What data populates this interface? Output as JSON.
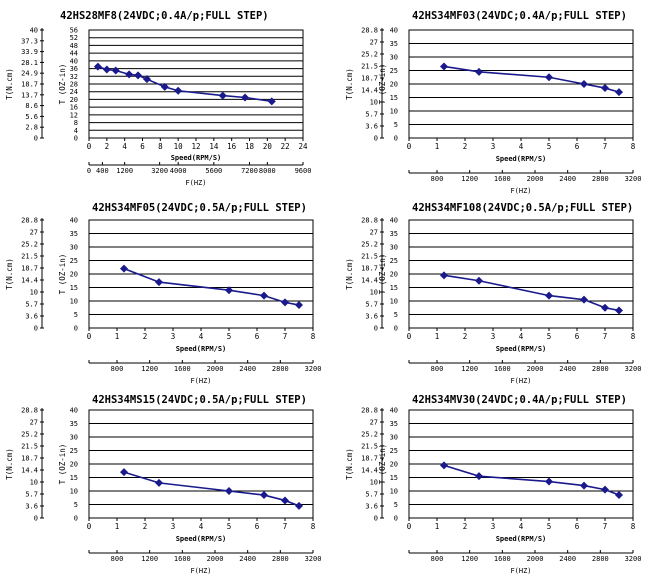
{
  "page": {
    "label_nm": "T(N.cm)",
    "label_ozin": "T (OZ-in)",
    "label_speed": "Speed(RPM/S)",
    "label_freq": "F(HZ)"
  },
  "colors": {
    "series": "#1a1a8c",
    "grid": "#000000",
    "text": "#000000"
  },
  "chart_data": [
    {
      "type": "line",
      "title": "42HS28MF8(24VDC;0.4A/p;FULL STEP)",
      "ylabel_left": "T(N.cm)",
      "ylabel_right": "T (OZ-in)",
      "xlabel": "Speed(RPM/S)",
      "x2label": "F(HZ)",
      "ylim": [
        0,
        56
      ],
      "xlim": [
        0,
        24
      ],
      "yticks_ozin": [
        "0",
        "4",
        "8",
        "12",
        "16",
        "20",
        "24",
        "28",
        "32",
        "36",
        "40",
        "44",
        "48",
        "52",
        "56"
      ],
      "yticks_ncm": [
        "0",
        "2.8",
        "5.6",
        "8.6",
        "13.7",
        "18.7",
        "24.9",
        "28.1",
        "33.9",
        "37.3",
        "40"
      ],
      "xticks": [
        "0",
        "2",
        "4",
        "6",
        "8",
        "10",
        "12",
        "14",
        "16",
        "18",
        "20",
        "22",
        "24"
      ],
      "freq_ticks": [
        "0",
        "400",
        "1200",
        "3200",
        "4000",
        "5600",
        "7200",
        "8000",
        "9600"
      ],
      "x": [
        1,
        2,
        3,
        4.5,
        5.5,
        6.5,
        8.5,
        10,
        15,
        17.5,
        20.5
      ],
      "y": [
        37,
        35.5,
        35,
        33,
        32.5,
        30.5,
        26.5,
        24.5,
        22,
        21,
        19
      ]
    },
    {
      "type": "line",
      "title": "42HS34MF03(24VDC;0.4A/p;FULL STEP)",
      "ylabel_left": "T(N.cm)",
      "ylabel_right": "T (OZ-in)",
      "xlabel": "Speed(RPM/S)",
      "x2label": "F(HZ)",
      "ylim": [
        0,
        40
      ],
      "xlim": [
        0,
        8
      ],
      "yticks_ozin": [
        "0",
        "5",
        "10",
        "15",
        "20",
        "25",
        "30",
        "35",
        "40"
      ],
      "yticks_ncm": [
        "0",
        "3.6",
        "5.7",
        "10",
        "14.4",
        "18.7",
        "21.5",
        "25.2",
        "27",
        "28.8"
      ],
      "xticks": [
        "0",
        "1",
        "2",
        "3",
        "4",
        "5",
        "6",
        "7",
        "8"
      ],
      "freq_ticks": [
        "800",
        "1200",
        "1600",
        "2000",
        "2400",
        "2800",
        "3200"
      ],
      "x": [
        1.25,
        2.5,
        5,
        6.25,
        7,
        7.5
      ],
      "y": [
        26.5,
        24.5,
        22.5,
        20,
        18.5,
        17
      ]
    },
    {
      "type": "line",
      "title": "42HS34MF05(24VDC;0.5A/p;FULL STEP)",
      "ylabel_left": "T(N.cm)",
      "ylabel_right": "T (OZ-in)",
      "xlabel": "Speed(RPM/S)",
      "x2label": "F(HZ)",
      "ylim": [
        0,
        40
      ],
      "xlim": [
        0,
        8
      ],
      "yticks_ozin": [
        "0",
        "5",
        "10",
        "15",
        "20",
        "25",
        "30",
        "35",
        "40"
      ],
      "yticks_ncm": [
        "0",
        "3.6",
        "5.7",
        "10",
        "14.4",
        "18.7",
        "21.5",
        "25.2",
        "27",
        "28.8"
      ],
      "xticks": [
        "0",
        "1",
        "2",
        "3",
        "4",
        "5",
        "6",
        "7",
        "8"
      ],
      "freq_ticks": [
        "800",
        "1200",
        "1600",
        "2000",
        "2400",
        "2800",
        "3200"
      ],
      "x": [
        1.25,
        2.5,
        5,
        6.25,
        7,
        7.5
      ],
      "y": [
        22,
        17,
        14,
        12,
        9.5,
        8.5
      ]
    },
    {
      "type": "line",
      "title": "42HS34MF108(24VDC;0.5A/p;FULL STEP)",
      "ylabel_left": "T(N.cm)",
      "ylabel_right": "T (OZ-in)",
      "xlabel": "Speed(RPM/S)",
      "x2label": "F(HZ)",
      "ylim": [
        0,
        40
      ],
      "xlim": [
        0,
        8
      ],
      "yticks_ozin": [
        "0",
        "5",
        "10",
        "15",
        "20",
        "25",
        "30",
        "35",
        "40"
      ],
      "yticks_ncm": [
        "0",
        "3.6",
        "5.7",
        "10",
        "14.4",
        "18.7",
        "21.5",
        "25.2",
        "27",
        "28.8"
      ],
      "xticks": [
        "0",
        "1",
        "2",
        "3",
        "4",
        "5",
        "6",
        "7",
        "8"
      ],
      "freq_ticks": [
        "800",
        "1200",
        "1600",
        "2000",
        "2400",
        "2800",
        "3200"
      ],
      "x": [
        1.25,
        2.5,
        5,
        6.25,
        7,
        7.5
      ],
      "y": [
        19.5,
        17.5,
        12,
        10.5,
        7.5,
        6.5
      ]
    },
    {
      "type": "line",
      "title": "42HS34MS15(24VDC;0.5A/p;FULL STEP)",
      "ylabel_left": "T(N.cm)",
      "ylabel_right": "T (OZ-in)",
      "xlabel": "Speed(RPM/S)",
      "x2label": "F(HZ)",
      "ylim": [
        0,
        40
      ],
      "xlim": [
        0,
        8
      ],
      "yticks_ozin": [
        "0",
        "5",
        "10",
        "15",
        "20",
        "25",
        "30",
        "35",
        "40"
      ],
      "yticks_ncm": [
        "0",
        "3.6",
        "5.7",
        "10",
        "14.4",
        "18.7",
        "21.5",
        "25.2",
        "27",
        "28.8"
      ],
      "xticks": [
        "0",
        "1",
        "2",
        "3",
        "4",
        "5",
        "6",
        "7",
        "8"
      ],
      "freq_ticks": [
        "800",
        "1200",
        "1600",
        "2000",
        "2400",
        "2800",
        "3200"
      ],
      "x": [
        1.25,
        2.5,
        5,
        6.25,
        7,
        7.5
      ],
      "y": [
        17,
        13,
        10,
        8.5,
        6.5,
        4.5
      ]
    },
    {
      "type": "line",
      "title": "42HS34MV30(24VDC;0.4A/p;FULL STEP)",
      "ylabel_left": "T(N.cm)",
      "ylabel_right": "T (OZ-in)",
      "xlabel": "Speed(RPM/S)",
      "x2label": "F(HZ)",
      "ylim": [
        0,
        40
      ],
      "xlim": [
        0,
        8
      ],
      "yticks_ozin": [
        "0",
        "5",
        "10",
        "15",
        "20",
        "25",
        "30",
        "35",
        "40"
      ],
      "yticks_ncm": [
        "0",
        "3.6",
        "5.7",
        "10",
        "14.4",
        "18.7",
        "21.5",
        "25.2",
        "27",
        "28.8"
      ],
      "xticks": [
        "0",
        "1",
        "2",
        "3",
        "4",
        "5",
        "6",
        "7",
        "8"
      ],
      "freq_ticks": [
        "800",
        "1200",
        "1600",
        "2000",
        "2400",
        "2800",
        "3200"
      ],
      "x": [
        1.25,
        2.5,
        5,
        6.25,
        7,
        7.5
      ],
      "y": [
        19.5,
        15.5,
        13.5,
        12,
        10.5,
        8.5
      ]
    }
  ]
}
